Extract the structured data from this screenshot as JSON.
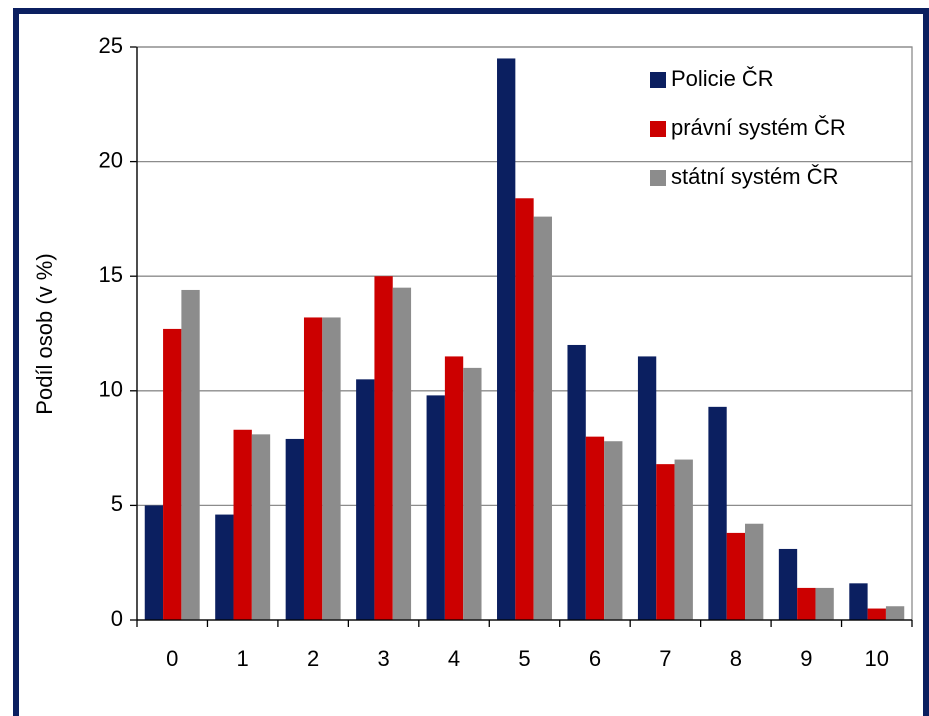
{
  "chart_data": {
    "type": "bar",
    "y_label": "Podíl osob (v %)",
    "categories": [
      "0",
      "1",
      "2",
      "3",
      "4",
      "5",
      "6",
      "7",
      "8",
      "9",
      "10"
    ],
    "series": [
      {
        "name": "Policie ČR",
        "color": "#0b1f60",
        "values": [
          5.0,
          4.6,
          7.9,
          10.5,
          9.8,
          24.5,
          12.0,
          11.5,
          9.3,
          3.1,
          1.6
        ]
      },
      {
        "name": "právní systém ČR",
        "color": "#cc0000",
        "values": [
          12.7,
          8.3,
          13.2,
          15.0,
          11.5,
          18.4,
          8.0,
          6.8,
          3.8,
          1.4,
          0.5
        ]
      },
      {
        "name": "státní systém ČR",
        "color": "#8c8c8c",
        "values": [
          14.4,
          8.1,
          13.2,
          14.5,
          11.0,
          17.6,
          7.8,
          7.0,
          4.2,
          1.4,
          0.6
        ]
      }
    ],
    "ylim": [
      0,
      25
    ],
    "yticks": [
      0,
      5,
      10,
      15,
      20,
      25
    ],
    "grid": true,
    "legend": "upper right"
  }
}
